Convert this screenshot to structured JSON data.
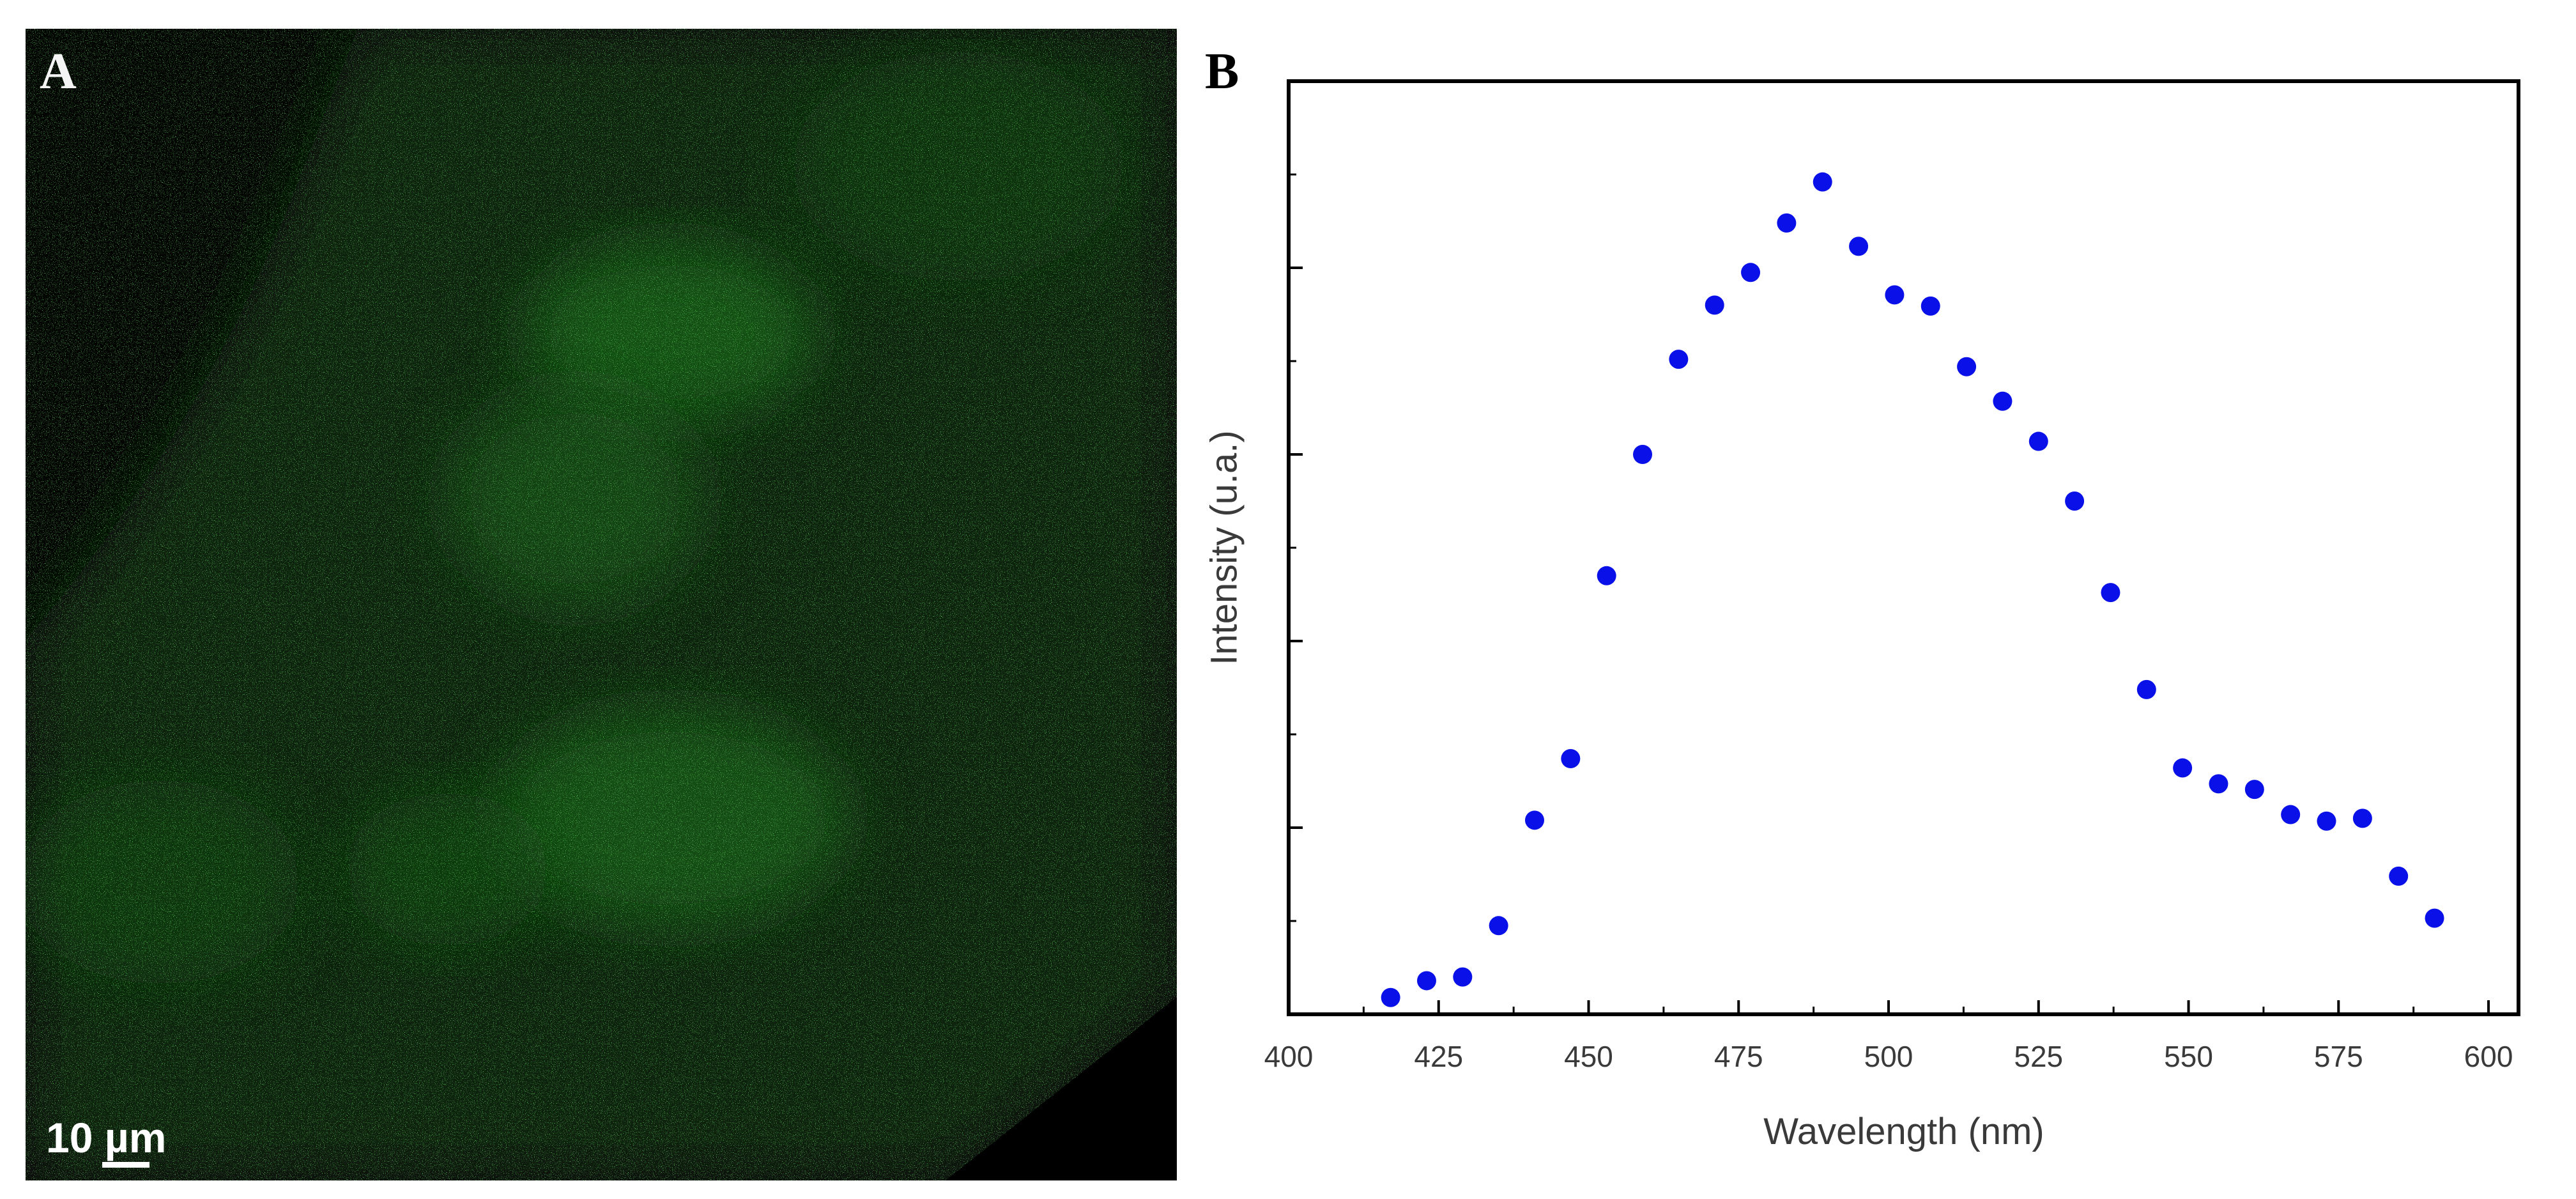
{
  "panel_a": {
    "letter": "A",
    "scale_bar_label": "10 µm",
    "image_description_color": "#1f7a1f"
  },
  "panel_b": {
    "letter": "B"
  },
  "chart_data": {
    "type": "scatter",
    "title": "",
    "xlabel": "Wavelength (nm)",
    "ylabel": "Intensity (u.a.)",
    "xlim": [
      400,
      605
    ],
    "ylim": [
      0,
      1
    ],
    "xticks": [
      400,
      425,
      450,
      475,
      500,
      525,
      550,
      575,
      600
    ],
    "x_tick_labels": [
      "400",
      "425",
      "450",
      "475",
      "500",
      "525",
      "550",
      "575",
      "600"
    ],
    "y_tick_labels_shown": false,
    "marker_color": "#0a10e8",
    "grid": false,
    "series": [
      {
        "name": "Intensity",
        "x": [
          417,
          423,
          429,
          435,
          441,
          447,
          453,
          459,
          465,
          471,
          477,
          483,
          489,
          495,
          501,
          507,
          513,
          519,
          525,
          531,
          537,
          543,
          549,
          555,
          561,
          567,
          573,
          579,
          585,
          591
        ],
        "y": [
          0.018,
          0.036,
          0.04,
          0.095,
          0.208,
          0.274,
          0.47,
          0.6,
          0.702,
          0.76,
          0.795,
          0.848,
          0.892,
          0.823,
          0.771,
          0.759,
          0.694,
          0.657,
          0.614,
          0.55,
          0.452,
          0.348,
          0.264,
          0.247,
          0.241,
          0.214,
          0.207,
          0.21,
          0.148,
          0.103
        ]
      }
    ]
  }
}
